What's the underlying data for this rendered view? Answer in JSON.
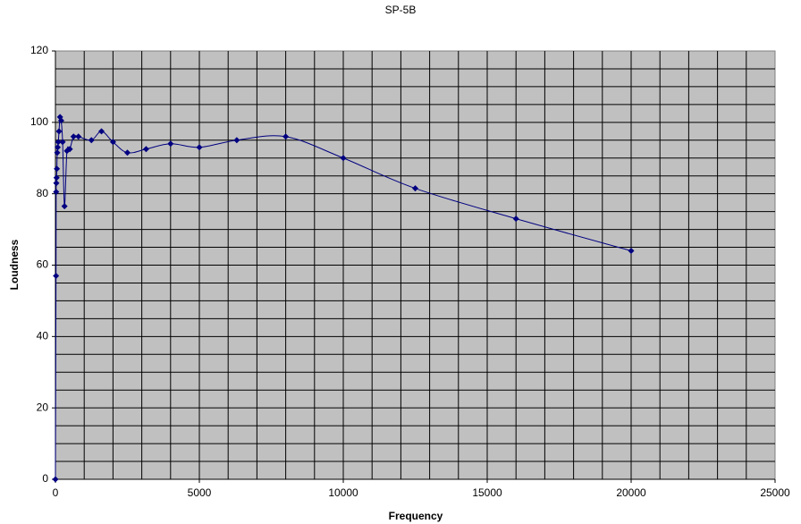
{
  "chart_data": {
    "type": "scatter-line",
    "title": "SP-5B",
    "x_label": "Frequency",
    "y_label": "Loudness",
    "x": [
      0,
      20,
      25,
      31.5,
      40,
      50,
      63,
      80,
      100,
      125,
      160,
      200,
      250,
      315,
      400,
      500,
      630,
      800,
      1250,
      1600,
      2000,
      2500,
      3150,
      4000,
      5000,
      6300,
      8000,
      10000,
      12500,
      16000,
      20000
    ],
    "series": [
      {
        "color": "#000080",
        "values": [
          0,
          57,
          80.5,
          83,
          84.5,
          87,
          91.5,
          93,
          94.5,
          97.5,
          101.5,
          100.5,
          94.5,
          76.5,
          92,
          92.5,
          96,
          96,
          95,
          97.5,
          94.5,
          91.5,
          92.5,
          94,
          93,
          95,
          96,
          90,
          81.5,
          73,
          64
        ]
      }
    ],
    "xlim": [
      0,
      25000
    ],
    "xticks": [
      0,
      5000,
      10000,
      15000,
      20000,
      25000
    ],
    "ylim": [
      0,
      120
    ],
    "yticks": [
      0,
      20,
      40,
      60,
      80,
      100,
      120
    ],
    "x_grid_step": 1000,
    "y_grid_step": 5,
    "grid": true,
    "smooth": true,
    "plot_background": "#c0c0c0"
  }
}
